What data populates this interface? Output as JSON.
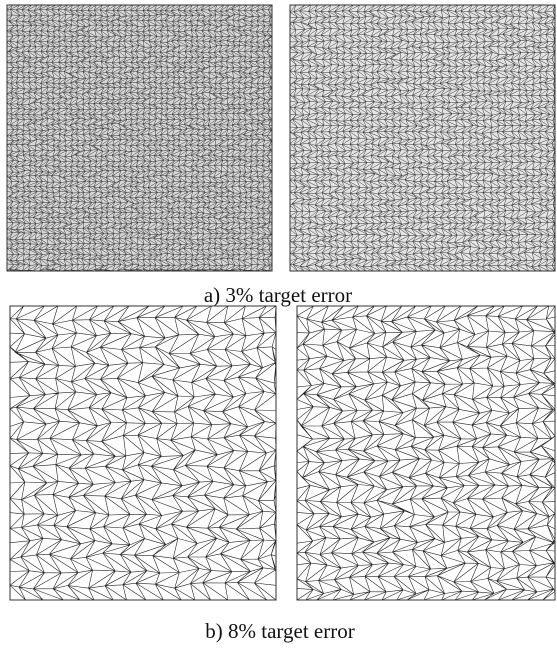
{
  "figure": {
    "captions": [
      "a) 3% target error",
      "b) 8% target error"
    ]
  }
}
